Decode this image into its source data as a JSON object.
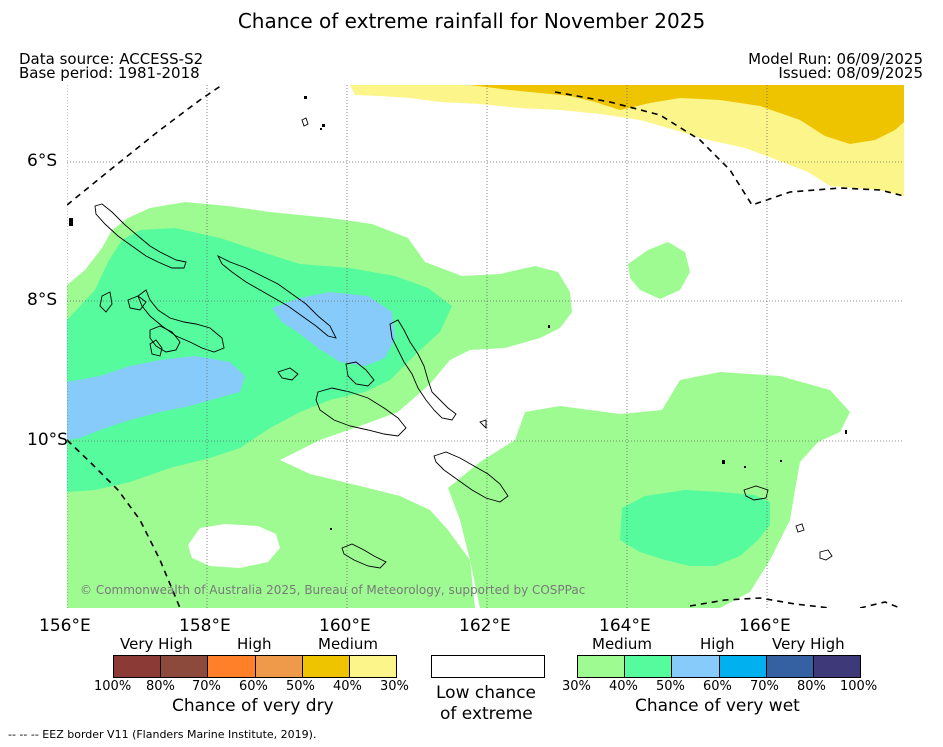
{
  "title": "Chance of extreme rainfall for November 2025",
  "meta": {
    "data_source": "Data source: ACCESS-S2",
    "base_period": "Base period: 1981-2018",
    "model_run": "Model Run: 06/09/2025",
    "issued": "Issued: 08/09/2025"
  },
  "axes": {
    "lon_labels": [
      "156°E",
      "158°E",
      "160°E",
      "162°E",
      "164°E",
      "166°E"
    ],
    "lat_labels": [
      "6°S",
      "8°S",
      "10°S"
    ]
  },
  "legend": {
    "dry": {
      "levels": [
        "Very High",
        "High",
        "Medium"
      ],
      "colors": [
        "#8b3a35",
        "#8c4a3c",
        "#ff8028",
        "#ee9a4a",
        "#eec400",
        "#fcf68a"
      ],
      "ticks": [
        "100%",
        "80%",
        "70%",
        "60%",
        "50%",
        "40%",
        "30%"
      ],
      "title": "Chance of very dry"
    },
    "low": {
      "color": "#ffffff",
      "title_line1": "Low chance",
      "title_line2": "of extreme"
    },
    "wet": {
      "levels": [
        "Medium",
        "High",
        "Very High"
      ],
      "colors": [
        "#9efb92",
        "#56fb9d",
        "#87cbfb",
        "#00b0ef",
        "#3560a2",
        "#3e3a7a"
      ],
      "ticks": [
        "30%",
        "40%",
        "50%",
        "60%",
        "70%",
        "80%",
        "100%"
      ],
      "title": "Chance of very wet"
    }
  },
  "copyright": "© Commonwealth of Australia 2025, Bureau of Meteorology, supported by COSPPac",
  "footnote": "--  --  -- EEZ border V11 (Flanders Marine Institute, 2019)."
}
